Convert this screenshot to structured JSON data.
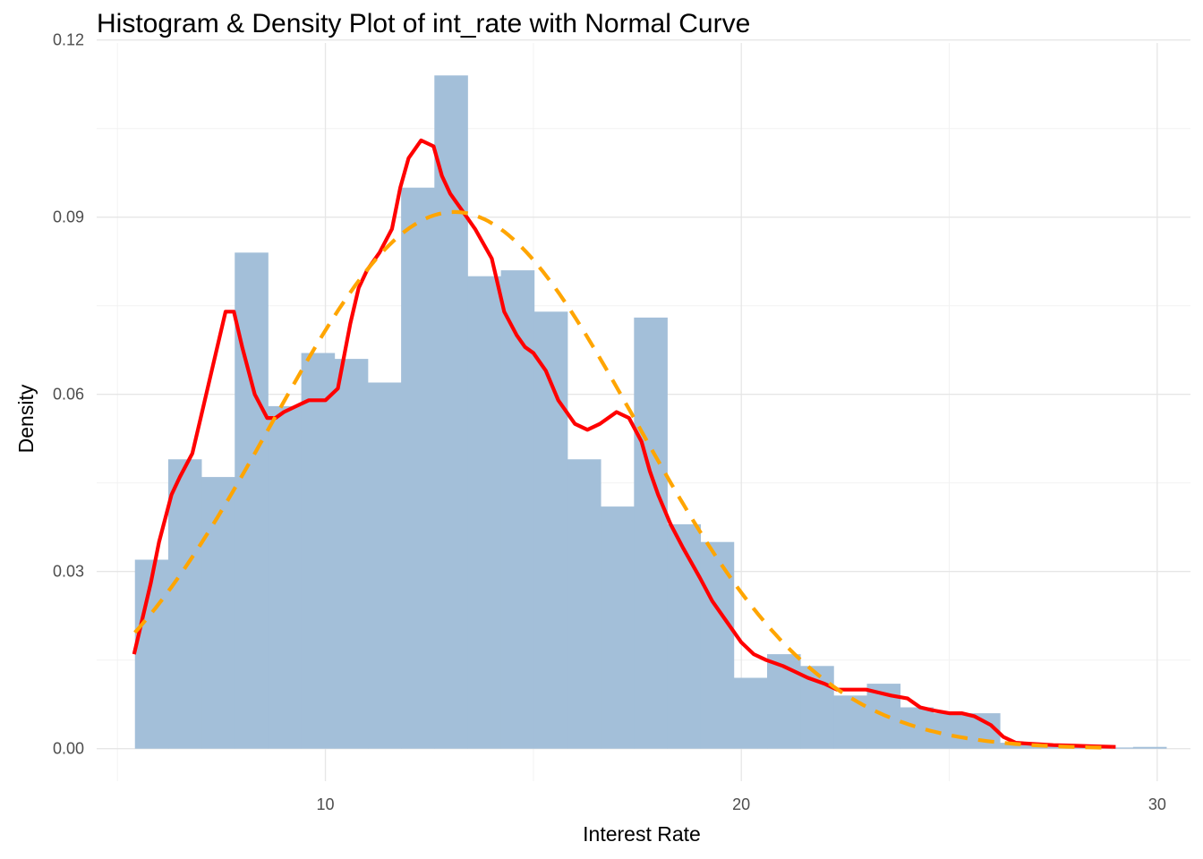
{
  "chart_data": {
    "type": "histogram",
    "title": "Histogram & Density Plot of int_rate with Normal Curve",
    "xlabel": "Interest Rate",
    "ylabel": "Density",
    "xlim": [
      4.5,
      30.8
    ],
    "ylim": [
      -0.0055,
      0.1195
    ],
    "x_ticks": [
      10,
      20,
      30
    ],
    "y_ticks": [
      0.0,
      0.03,
      0.06,
      0.09,
      0.12
    ],
    "x_tick_labels": [
      "10",
      "20",
      "30"
    ],
    "y_tick_labels": [
      "0.00",
      "0.03",
      "0.06",
      "0.09",
      "0.12"
    ],
    "grid": true,
    "bins": {
      "start": 5.42,
      "width": 0.8,
      "densities": [
        0.032,
        0.049,
        0.046,
        0.084,
        0.058,
        0.067,
        0.066,
        0.062,
        0.095,
        0.114,
        0.08,
        0.081,
        0.074,
        0.049,
        0.041,
        0.073,
        0.038,
        0.035,
        0.012,
        0.016,
        0.014,
        0.009,
        0.011,
        0.007,
        0.006,
        0.006,
        0.001,
        0.0005,
        0.0003,
        0.0002,
        0.0003
      ],
      "color": "#a3bfd9"
    },
    "series": [
      {
        "kind": "kernel_density",
        "color": "#ff0000",
        "line_style": "solid",
        "x": [
          5.4,
          5.6,
          5.8,
          6.0,
          6.3,
          6.5,
          6.8,
          7.0,
          7.3,
          7.6,
          7.8,
          8.0,
          8.3,
          8.6,
          8.8,
          9.0,
          9.3,
          9.6,
          10.0,
          10.3,
          10.6,
          10.8,
          11.0,
          11.3,
          11.6,
          11.8,
          12.0,
          12.3,
          12.6,
          12.8,
          13.0,
          13.3,
          13.6,
          14.0,
          14.3,
          14.6,
          14.8,
          15.0,
          15.3,
          15.6,
          16.0,
          16.3,
          16.6,
          17.0,
          17.3,
          17.6,
          17.8,
          18.0,
          18.3,
          18.6,
          19.0,
          19.3,
          19.6,
          20.0,
          20.3,
          20.6,
          21.0,
          21.3,
          21.6,
          22.0,
          22.3,
          22.6,
          23.0,
          23.3,
          23.6,
          24.0,
          24.3,
          24.6,
          25.0,
          25.3,
          25.6,
          26.0,
          26.3,
          26.6,
          27.0,
          27.5,
          28.0,
          28.5,
          29.0
        ],
        "y": [
          0.016,
          0.022,
          0.028,
          0.035,
          0.043,
          0.046,
          0.05,
          0.056,
          0.065,
          0.074,
          0.074,
          0.068,
          0.06,
          0.056,
          0.056,
          0.057,
          0.058,
          0.059,
          0.059,
          0.061,
          0.072,
          0.078,
          0.081,
          0.084,
          0.088,
          0.095,
          0.1,
          0.103,
          0.102,
          0.097,
          0.094,
          0.091,
          0.088,
          0.083,
          0.074,
          0.07,
          0.068,
          0.067,
          0.064,
          0.059,
          0.055,
          0.054,
          0.055,
          0.057,
          0.056,
          0.052,
          0.047,
          0.043,
          0.038,
          0.034,
          0.029,
          0.025,
          0.022,
          0.018,
          0.016,
          0.015,
          0.014,
          0.013,
          0.012,
          0.011,
          0.01,
          0.01,
          0.01,
          0.0095,
          0.009,
          0.0085,
          0.007,
          0.0065,
          0.006,
          0.006,
          0.0055,
          0.004,
          0.002,
          0.001,
          0.0008,
          0.0006,
          0.0005,
          0.0004,
          0.0003
        ]
      },
      {
        "kind": "normal_curve",
        "color": "#ffa500",
        "line_style": "dashed",
        "mean": 13.1,
        "sd": 4.39
      }
    ]
  }
}
